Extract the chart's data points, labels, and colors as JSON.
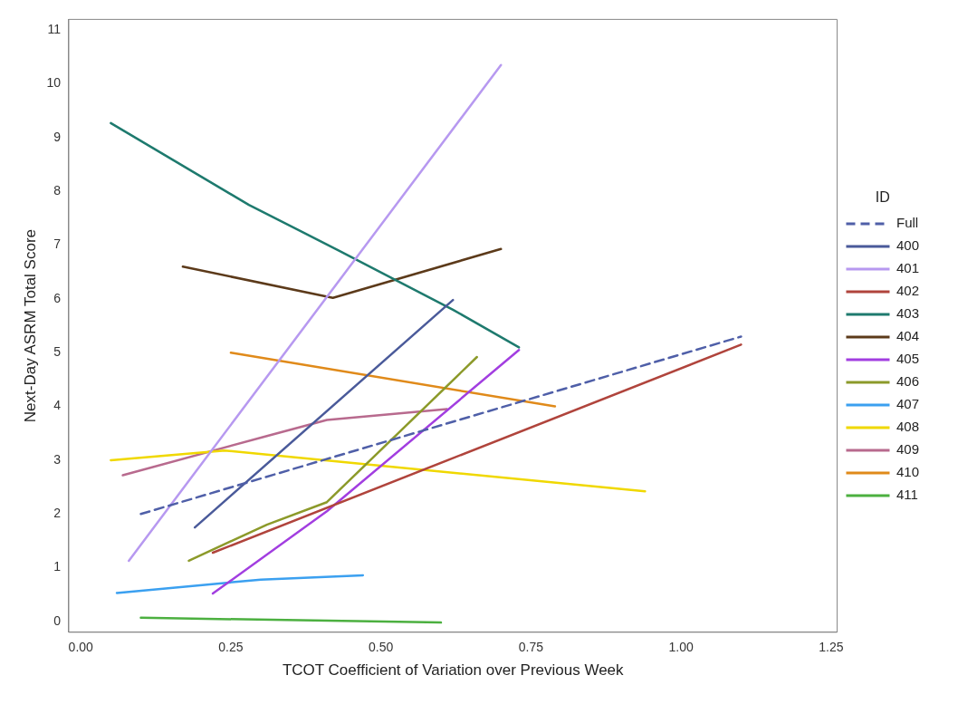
{
  "chart_data": {
    "type": "line",
    "xlabel": "TCOT Coefficient of Variation over Previous Week",
    "ylabel": "Next-Day ASRM Total Score",
    "legend_title": "ID",
    "legend": "right",
    "grid": false,
    "marker": "none",
    "xlim": [
      -0.02,
      1.26
    ],
    "ylim": [
      -0.2,
      11.2
    ],
    "xticks": [
      {
        "value": 0,
        "label": "0.00"
      },
      {
        "value": 0.25,
        "label": "0.25"
      },
      {
        "value": 0.5,
        "label": "0.50"
      },
      {
        "value": 0.75,
        "label": "0.75"
      },
      {
        "value": 1,
        "label": "1.00"
      },
      {
        "value": 1.25,
        "label": "1.25"
      }
    ],
    "yticks": [
      0,
      1,
      2,
      3,
      4,
      5,
      6,
      7,
      8,
      9,
      10,
      11
    ],
    "series": [
      {
        "name": "Full",
        "color": "#4f5fa8",
        "line_style": "dashed",
        "x": [
          0.1,
          1.1
        ],
        "values": [
          2.0,
          5.3
        ]
      },
      {
        "name": "400",
        "color": "#4a5a9a",
        "x": [
          0.19,
          0.62
        ],
        "values": [
          1.75,
          5.98
        ]
      },
      {
        "name": "401",
        "color": "#b799f0",
        "x": [
          0.08,
          0.7
        ],
        "values": [
          1.13,
          10.35
        ]
      },
      {
        "name": "402",
        "color": "#b0443c",
        "x": [
          0.22,
          1.1
        ],
        "values": [
          1.28,
          5.15
        ]
      },
      {
        "name": "403",
        "color": "#1e7a6e",
        "x": [
          0.05,
          0.28,
          0.43,
          0.62,
          0.73
        ],
        "values": [
          9.27,
          7.75,
          6.9,
          5.8,
          5.1
        ]
      },
      {
        "name": "404",
        "color": "#5c3a1a",
        "x": [
          0.17,
          0.42,
          0.7
        ],
        "values": [
          6.6,
          6.02,
          6.93
        ]
      },
      {
        "name": "405",
        "color": "#a23ee0",
        "x": [
          0.22,
          0.41,
          0.73
        ],
        "values": [
          0.52,
          2.05,
          5.05
        ]
      },
      {
        "name": "406",
        "color": "#8c9a2a",
        "x": [
          0.18,
          0.31,
          0.41,
          0.66
        ],
        "values": [
          1.13,
          1.8,
          2.22,
          4.92
        ]
      },
      {
        "name": "407",
        "color": "#3ba0f0",
        "x": [
          0.06,
          0.3,
          0.47
        ],
        "values": [
          0.53,
          0.78,
          0.86
        ]
      },
      {
        "name": "408",
        "color": "#f0d800",
        "x": [
          0.05,
          0.24,
          0.94
        ],
        "values": [
          3.0,
          3.18,
          2.42
        ]
      },
      {
        "name": "409",
        "color": "#b86a8e",
        "x": [
          0.07,
          0.31,
          0.41,
          0.61
        ],
        "values": [
          2.72,
          3.45,
          3.75,
          3.95
        ]
      },
      {
        "name": "410",
        "color": "#e08a1a",
        "x": [
          0.25,
          0.79
        ],
        "values": [
          5.0,
          4.0
        ]
      },
      {
        "name": "411",
        "color": "#4cb040",
        "x": [
          0.1,
          0.6
        ],
        "values": [
          0.07,
          -0.02
        ]
      }
    ]
  }
}
